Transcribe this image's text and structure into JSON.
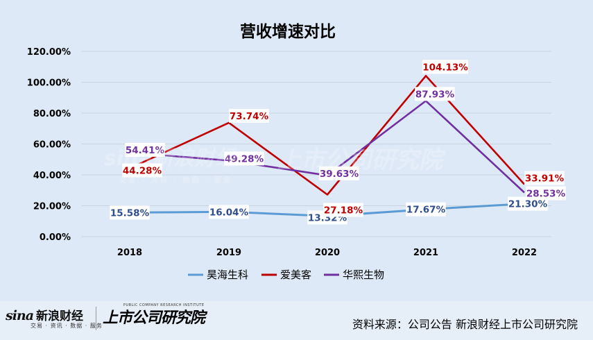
{
  "chart_data": {
    "type": "line",
    "title": "营收增速对比",
    "categories": [
      "2018",
      "2019",
      "2020",
      "2021",
      "2022"
    ],
    "y_ticks": [
      "0.00%",
      "20.00%",
      "40.00%",
      "60.00%",
      "80.00%",
      "100.00%",
      "120.00%"
    ],
    "ylim": [
      0,
      120
    ],
    "grid": true,
    "legend_position": "bottom",
    "series": [
      {
        "name": "昊海生科",
        "color": "#5b9bd5",
        "label_color": "#2f4e8c",
        "values": [
          15.58,
          16.04,
          13.32,
          17.67,
          21.3
        ],
        "labels": [
          "15.58%",
          "16.04%",
          "13.32%",
          "17.67%",
          "21.30%"
        ]
      },
      {
        "name": "爱美客",
        "color": "#c00000",
        "label_color": "#c00000",
        "values": [
          44.28,
          73.74,
          27.18,
          104.13,
          33.91
        ],
        "labels": [
          "44.28%",
          "73.74%",
          "27.18%",
          "104.13%",
          "33.91%"
        ]
      },
      {
        "name": "华熙生物",
        "color": "#7030a0",
        "label_color": "#7030a0",
        "values": [
          54.41,
          49.28,
          39.63,
          87.93,
          28.53
        ],
        "labels": [
          "54.41%",
          "49.28%",
          "39.63%",
          "87.93%",
          "28.53%"
        ]
      }
    ]
  },
  "footer": {
    "sina_brand": "sina",
    "sina_brand_cn": "新浪财经",
    "sina_sub": "交易 · 资讯 · 数据 · 服务",
    "institute": "上市公司研究院",
    "institute_en": "PUBLIC COMPANY RESEARCH INSTITUTE",
    "source": "资料来源：公司公告 新浪财经上市公司研究院"
  },
  "watermark": {
    "sina_cn": "sina新浪财经",
    "institute": "上市公司研究院",
    "sub": "交易 · 资讯 · 数据 · 服务"
  }
}
